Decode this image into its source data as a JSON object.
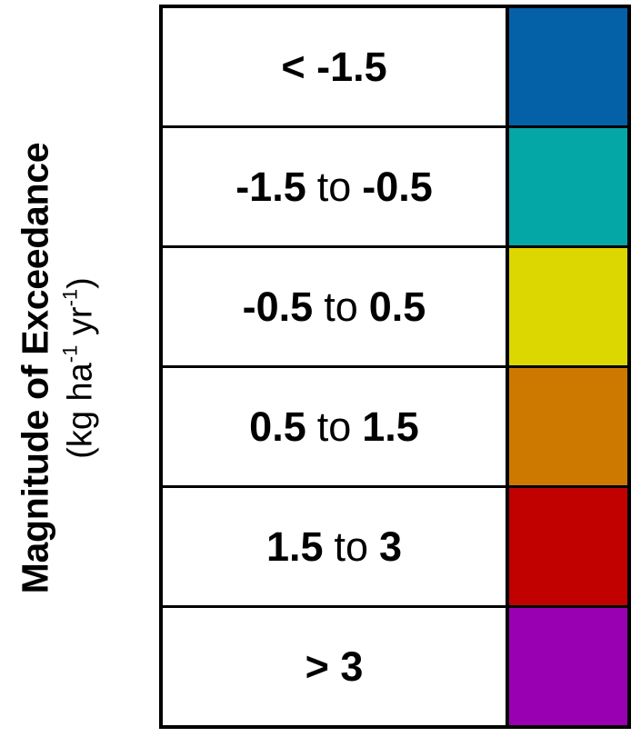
{
  "legend": {
    "title": "Magnitude of Exceedance",
    "unit": {
      "open": "(kg ha",
      "exp1": "-1",
      "mid": " yr",
      "exp2": "-1",
      "close": ")"
    },
    "rows": [
      {
        "parts": [
          "< -1.5"
        ],
        "color": "#0461a8"
      },
      {
        "parts": [
          "-1.5",
          "to",
          "-0.5"
        ],
        "color": "#05a6a6"
      },
      {
        "parts": [
          "-0.5",
          "to",
          "0.5"
        ],
        "color": "#dcd700"
      },
      {
        "parts": [
          "0.5",
          "to",
          "1.5"
        ],
        "color": "#cd7900"
      },
      {
        "parts": [
          "1.5",
          "to",
          "3"
        ],
        "color": "#c10000"
      },
      {
        "parts": [
          "> 3"
        ],
        "color": "#9900b1"
      }
    ]
  }
}
